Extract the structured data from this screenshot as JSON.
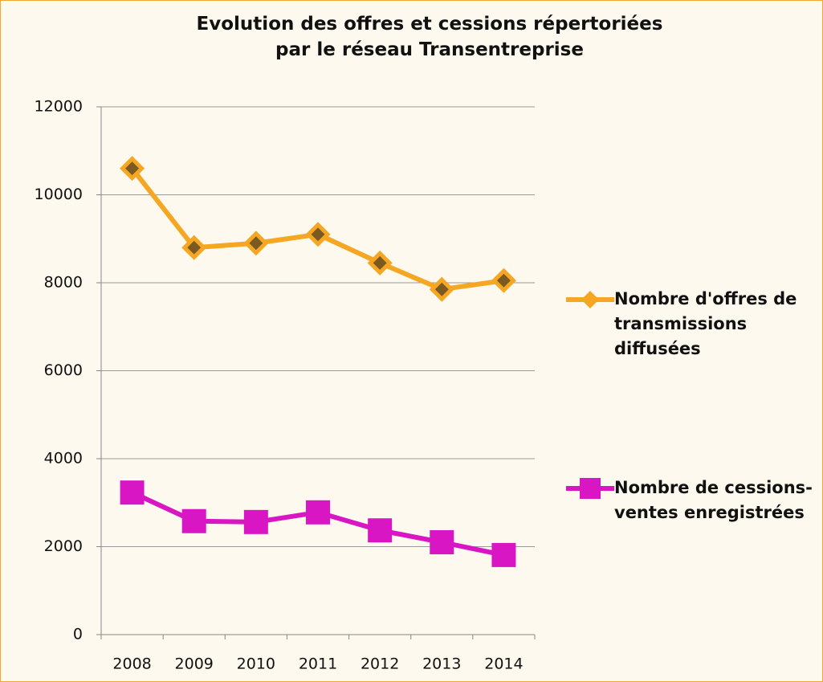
{
  "chart_data": {
    "type": "line",
    "title": "Evolution des offres et cessions répertoriées\npar le réseau Transentreprise",
    "categories": [
      "2008",
      "2009",
      "2010",
      "2011",
      "2012",
      "2013",
      "2014"
    ],
    "series": [
      {
        "name": "Nombre d'offres de transmissions diffusées",
        "color": "#f5a623",
        "marker": "diamond",
        "values": [
          10600,
          8800,
          8900,
          9100,
          8450,
          7850,
          8050
        ]
      },
      {
        "name": "Nombre de cessions-ventes enregistrées",
        "color": "#d916c4",
        "marker": "square",
        "values": [
          3230,
          2580,
          2560,
          2780,
          2370,
          2100,
          1810
        ]
      }
    ],
    "ylim": [
      0,
      12000
    ],
    "yticks": [
      0,
      2000,
      4000,
      6000,
      8000,
      10000,
      12000
    ],
    "grid": true,
    "legend": "right"
  }
}
